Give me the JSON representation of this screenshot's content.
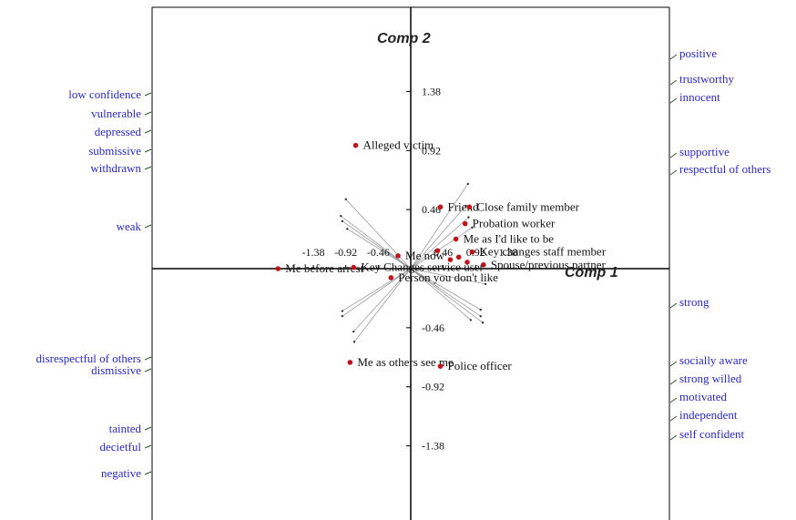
{
  "chart_data": {
    "type": "scatter",
    "title": "",
    "xlabel": "Comp 1",
    "ylabel": "Comp 2",
    "xlim": [
      -2.4,
      1.38
    ],
    "ylim": [
      -1.65,
      1.7
    ],
    "x_ticks": [
      -1.38,
      -0.92,
      -0.46,
      0.46,
      0.92,
      1.38
    ],
    "x_tick_labels": [
      "-1.38",
      "-0.92",
      "-0.46",
      "0.46",
      "0.92",
      "1.38"
    ],
    "y_ticks": [
      1.38,
      0.92,
      0.46,
      -0.46,
      -0.92,
      -1.38
    ],
    "y_tick_labels": [
      "1.38",
      "0.92",
      "0.46",
      "-0.46",
      "-0.92",
      "-1.38"
    ],
    "grid": false,
    "point_color": "#c0141c",
    "construct_color": "#2a2ab8",
    "elements": [
      {
        "label": "Alleged victim",
        "x": -0.78,
        "y": 0.96
      },
      {
        "label": "Friend",
        "x": 0.42,
        "y": 0.48
      },
      {
        "label": "Close family member",
        "x": 0.83,
        "y": 0.48
      },
      {
        "label": "Probation worker",
        "x": 0.77,
        "y": 0.35
      },
      {
        "label": "Me as I'd like to be",
        "x": 0.64,
        "y": 0.23
      },
      {
        "label": "Me now",
        "x": -0.18,
        "y": 0.1
      },
      {
        "label": "Key changes staff member",
        "x": 0.87,
        "y": 0.13
      },
      {
        "label": "Spouse/previous partner",
        "x": 1.03,
        "y": 0.03
      },
      {
        "label": "Me before arrest",
        "x": -1.88,
        "y": 0.0
      },
      {
        "label": "Key Changes service user",
        "x": -0.81,
        "y": 0.01
      },
      {
        "label": "Person you don't like",
        "x": -0.28,
        "y": -0.07
      },
      {
        "label": "Me as others see me",
        "x": -0.86,
        "y": -0.73
      },
      {
        "label": "Police officer",
        "x": 0.42,
        "y": -0.76
      }
    ],
    "unlabeled_points": [
      {
        "x": 0.38,
        "y": 0.14
      },
      {
        "x": 0.56,
        "y": 0.07
      },
      {
        "x": 0.68,
        "y": 0.09
      },
      {
        "x": 0.8,
        "y": 0.05
      }
    ],
    "construct_vectors": [
      {
        "x": 0.81,
        "y": 0.66
      },
      {
        "x": 0.78,
        "y": 0.49
      },
      {
        "x": 0.82,
        "y": 0.4
      },
      {
        "x": 0.87,
        "y": 0.32
      },
      {
        "x": 1.06,
        "y": -0.12
      },
      {
        "x": 0.99,
        "y": -0.32
      },
      {
        "x": 0.99,
        "y": -0.37
      },
      {
        "x": 1.02,
        "y": -0.42
      },
      {
        "x": 0.85,
        "y": -0.4
      },
      {
        "x": -0.92,
        "y": 0.54
      },
      {
        "x": -0.99,
        "y": 0.41
      },
      {
        "x": -0.97,
        "y": 0.37
      },
      {
        "x": -0.9,
        "y": 0.31
      },
      {
        "x": -0.97,
        "y": -0.37
      },
      {
        "x": -0.97,
        "y": -0.33
      },
      {
        "x": -0.81,
        "y": -0.49
      },
      {
        "x": -0.8,
        "y": -0.57
      }
    ],
    "constructs_left": [
      "low confidence",
      "vulnerable",
      "depressed",
      "submissive",
      "withdrawn",
      "weak",
      "disrespectful of others",
      "dismissive",
      "tainted",
      "decietful",
      "negative"
    ],
    "constructs_right": [
      "positive",
      "trustworthy",
      "innocent",
      "supportive",
      "respectful of others",
      "strong",
      "socially aware",
      "strong willed",
      "motivated",
      "independent",
      "self confident"
    ]
  }
}
